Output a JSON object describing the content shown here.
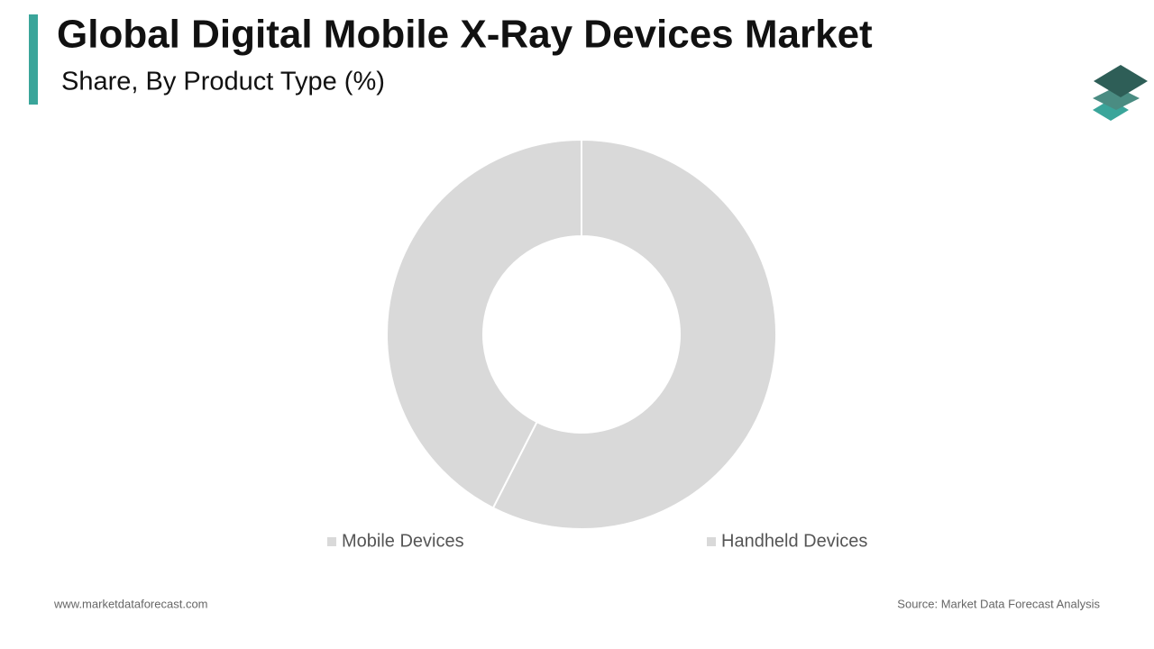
{
  "chart_data": {
    "type": "donut",
    "title": "Global Digital Mobile X-Ray Devices Market",
    "subtitle": "Share, By Product Type (%)",
    "categories": [
      "Mobile Devices",
      "Handheld Devices"
    ],
    "values": [
      57.5,
      42.5
    ],
    "colors": [
      "#d9d9d9",
      "#d9d9d9"
    ],
    "footer_left": "www.marketdataforecast.com",
    "footer_right": "Source: Market Data Forecast Analysis"
  }
}
